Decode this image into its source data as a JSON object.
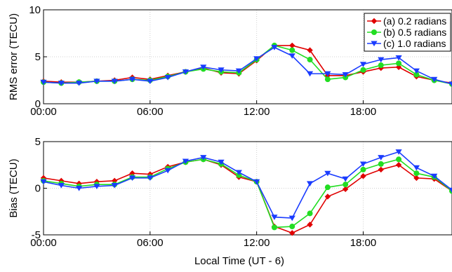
{
  "chart_data": [
    {
      "type": "line",
      "title": "",
      "xlabel": "",
      "ylabel": "RMS error (TECU)",
      "ylim": [
        0,
        10
      ],
      "yticks": [
        0,
        5,
        10
      ],
      "xlim": [
        0,
        23
      ],
      "xticks": [
        0,
        6,
        12,
        18
      ],
      "xtick_labels": [
        "00:00",
        "06:00",
        "12:00",
        "18:00"
      ],
      "grid": true,
      "legend_position": "top-right",
      "x": [
        0,
        1,
        2,
        3,
        4,
        5,
        6,
        7,
        8,
        9,
        10,
        11,
        12,
        13,
        14,
        15,
        16,
        17,
        18,
        19,
        20,
        21,
        22,
        23
      ],
      "series": [
        {
          "name": "(a) 0.2 radians",
          "color": "#e00000",
          "marker": "diamond",
          "values": [
            2.4,
            2.3,
            2.3,
            2.4,
            2.5,
            2.8,
            2.6,
            3.0,
            3.4,
            3.8,
            3.3,
            3.2,
            4.6,
            6.2,
            6.2,
            5.7,
            3.0,
            3.0,
            3.4,
            3.8,
            3.9,
            2.9,
            2.5,
            2.2
          ]
        },
        {
          "name": "(b) 0.5 radians",
          "color": "#22dd22",
          "marker": "circle",
          "values": [
            2.3,
            2.2,
            2.3,
            2.4,
            2.4,
            2.6,
            2.5,
            2.9,
            3.4,
            3.7,
            3.4,
            3.3,
            4.7,
            6.2,
            5.7,
            4.7,
            2.6,
            2.8,
            3.6,
            4.1,
            4.3,
            3.1,
            2.5,
            2.1
          ]
        },
        {
          "name": "(c) 1.0 radians",
          "color": "#1a3cff",
          "marker": "triangle-down",
          "values": [
            2.3,
            2.2,
            2.2,
            2.4,
            2.4,
            2.6,
            2.4,
            2.8,
            3.4,
            3.9,
            3.6,
            3.5,
            4.8,
            6.0,
            5.1,
            3.2,
            3.2,
            3.1,
            4.2,
            4.7,
            4.9,
            3.5,
            2.6,
            2.1
          ]
        }
      ]
    },
    {
      "type": "line",
      "title": "",
      "xlabel": "Local Time (UT - 6)",
      "ylabel": "Bias (TECU)",
      "ylim": [
        -5,
        5
      ],
      "yticks": [
        -5,
        0,
        5
      ],
      "xlim": [
        0,
        23
      ],
      "xticks": [
        0,
        6,
        12,
        18
      ],
      "xtick_labels": [
        "00:00",
        "06:00",
        "12:00",
        "18:00"
      ],
      "grid": true,
      "x": [
        0,
        1,
        2,
        3,
        4,
        5,
        6,
        7,
        8,
        9,
        10,
        11,
        12,
        13,
        14,
        15,
        16,
        17,
        18,
        19,
        20,
        21,
        22,
        23
      ],
      "series": [
        {
          "name": "(a) 0.2 radians",
          "color": "#e00000",
          "marker": "diamond",
          "values": [
            1.1,
            0.8,
            0.5,
            0.7,
            0.8,
            1.6,
            1.5,
            2.3,
            2.8,
            3.1,
            2.5,
            1.2,
            0.7,
            -4.1,
            -4.8,
            -3.9,
            -0.9,
            -0.1,
            1.3,
            2.0,
            2.5,
            1.1,
            1.0,
            -0.3
          ]
        },
        {
          "name": "(b) 0.5 radians",
          "color": "#22dd22",
          "marker": "circle",
          "values": [
            0.8,
            0.5,
            0.2,
            0.4,
            0.4,
            1.2,
            1.2,
            2.1,
            2.8,
            3.1,
            2.6,
            1.4,
            0.7,
            -4.2,
            -4.1,
            -2.7,
            0.1,
            0.4,
            2.0,
            2.6,
            3.1,
            1.6,
            1.2,
            -0.3
          ]
        },
        {
          "name": "(c) 1.0 radians",
          "color": "#1a3cff",
          "marker": "triangle-down",
          "values": [
            0.7,
            0.3,
            0.0,
            0.2,
            0.3,
            1.1,
            1.1,
            1.9,
            2.9,
            3.3,
            2.8,
            1.7,
            0.7,
            -3.1,
            -3.2,
            0.5,
            1.6,
            1.0,
            2.6,
            3.3,
            3.9,
            2.2,
            1.3,
            -0.2
          ]
        }
      ]
    }
  ]
}
